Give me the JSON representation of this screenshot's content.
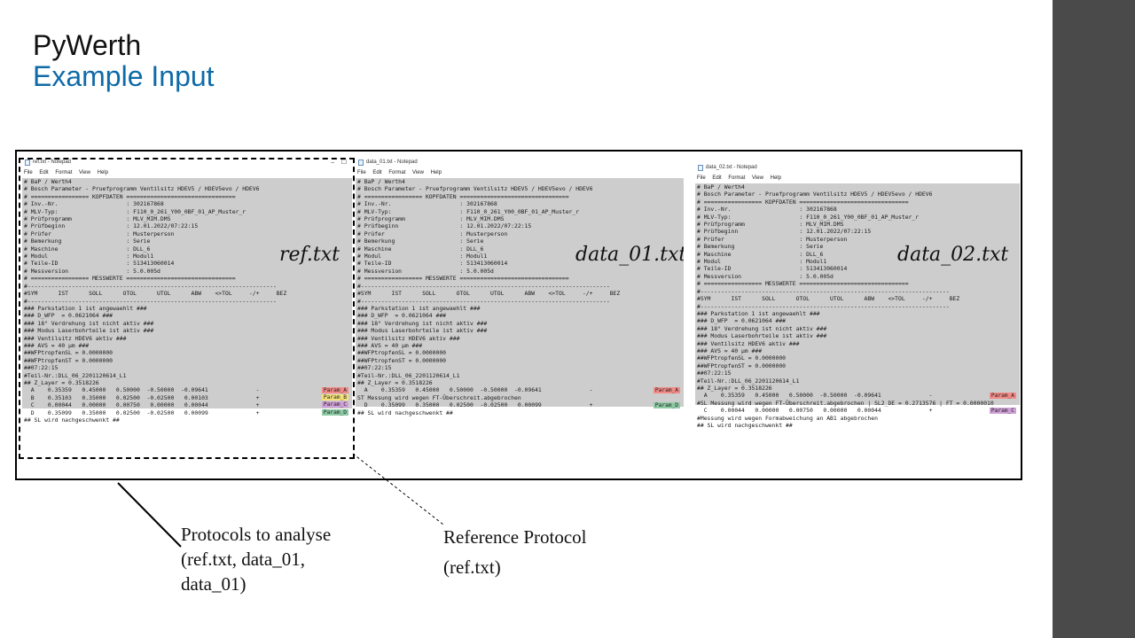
{
  "slide": {
    "title": "PyWerth",
    "subtitle": "Example Input",
    "accent_color": "#0f6aa8"
  },
  "notepad_menu": [
    "File",
    "Edit",
    "Format",
    "View",
    "Help"
  ],
  "windows": [
    {
      "title": "ref.txt - Notepad",
      "label": "ref.txt",
      "lines": [
        "# BaP / Werth4",
        "# Bosch Parameter - Pruefprogramm Ventilsitz HDEV5 / HDEV5evo / HDEV6",
        "# ================= KOPFDATEN ================================",
        "# Inv.-Nr.                    : 302167868",
        "# MLV-Typ:                    : F110_0_261_Y00_0BF_01_AP_Muster_r",
        "# Prüfprogramm                : MLV_MIM.DMS",
        "# Prüfbeginn                  : 12.01.2022/07:22:15",
        "# Prüfer                      : Musterperson",
        "# Bemerkung                   : Serie",
        "# Maschine                    : DLL_6",
        "# Modul                       : Modul1",
        "# Teile-ID                    : 513413060014",
        "# Messversion                 : 5.0.005d",
        "# ================= MESSWERTE ================================",
        "#-------------------------------------------------------------------------",
        "#SYM      IST      SOLL      OTOL      UTOL      ABW    <>TOL     -/+     BEZ",
        "#-------------------------------------------------------------------------",
        "### Parkstation 1 ist angewaehlt ###",
        "### D_WFP  = 0.0621064 ###",
        "### 18° Verdrehung ist nicht aktiv ###",
        "### Modus Laserbohrteile ist aktiv ###",
        "### Ventilsitz HDEV6 aktiv ###",
        "### AVS = 40 µm ###",
        "##WFPtropfenSL = 0.0000000",
        "##WFPtropfenST = 0.0000000",
        "##07:22:15",
        "#Teil-Nr.:DLL_06_2201120614_L1",
        "## Z_Layer = 0.3518226",
        "  A    0.35359   0.45000   0.50000  -0.50000  -0.09641              -",
        "  B    0.35103   0.35000   0.02500  -0.02500   0.00103              +",
        "  C    0.00044   0.00000   0.00750   0.00000   0.00044              +",
        "  D    0.35099   0.35000   0.02500  -0.02500   0.00099              +",
        "## SL wird nachgeschwenkt ##"
      ],
      "tags": [
        {
          "text": "Param_A",
          "color": "red"
        },
        {
          "text": "Param_B",
          "color": "yellow"
        },
        {
          "text": "Param_C",
          "color": "purple"
        },
        {
          "text": "Param_D",
          "color": "green"
        }
      ]
    },
    {
      "title": "data_01.txt - Notepad",
      "label": "data_01.txt",
      "lines": [
        "# BaP / Werth4",
        "# Bosch Parameter - Pruefprogramm Ventilsitz HDEV5 / HDEV5evo / HDEV6",
        "# ================= KOPFDATEN ================================",
        "# Inv.-Nr.                    : 302167868",
        "# MLV-Typ:                    : F110_0_261_Y00_0BF_01_AP_Muster_r",
        "# Prüfprogramm                : MLV_MIM.DMS",
        "# Prüfbeginn                  : 12.01.2022/07:22:15",
        "# Prüfer                      : Musterperson",
        "# Bemerkung                   : Serie",
        "# Maschine                    : DLL_6",
        "# Modul                       : Modul1",
        "# Teile-ID                    : 513413060014",
        "# Messversion                 : 5.0.005d",
        "# ================= MESSWERTE ================================",
        "#-------------------------------------------------------------------------",
        "#SYM      IST      SOLL      OTOL      UTOL      ABW    <>TOL     -/+     BEZ",
        "#-------------------------------------------------------------------------",
        "### Parkstation 1 ist angewaehlt ###",
        "### D_WFP  = 0.0621064 ###",
        "### 18° Verdrehung ist nicht aktiv ###",
        "### Modus Laserbohrteile ist aktiv ###",
        "### Ventilsitz HDEV6 aktiv ###",
        "### AVS = 40 µm ###",
        "##WFPtropfenSL = 0.0000000",
        "##WFPtropfenST = 0.0000000",
        "##07:22:15",
        "#Teil-Nr.:DLL_06_2201120614_L1",
        "## Z_Layer = 0.3518226",
        "  A    0.35359   0.45000   0.50000  -0.50000  -0.09641              -",
        "ST Messung wird wegen FT-Überschreit.abgebrochen",
        "  D    0.35099   0.35000   0.02500  -0.02500   0.00099              +",
        "## SL wird nachgeschwenkt ##"
      ],
      "tags": [
        {
          "text": "Param_A",
          "color": "red"
        },
        {
          "text": "Param_D",
          "color": "green"
        }
      ]
    },
    {
      "title": "data_02.txt - Notepad",
      "label": "data_02.txt",
      "lines": [
        "# BaP / Werth4",
        "# Bosch Parameter - Pruefprogramm Ventilsitz HDEV5 / HDEV5evo / HDEV6",
        "# ================= KOPFDATEN ================================",
        "# Inv.-Nr.                    : 302167868",
        "# MLV-Typ:                    : F110_0_261_Y00_0BF_01_AP_Muster_r",
        "# Prüfprogramm                : MLV_MIM.DMS",
        "# Prüfbeginn                  : 12.01.2022/07:22:15",
        "# Prüfer                      : Musterperson",
        "# Bemerkung                   : Serie",
        "# Maschine                    : DLL_6",
        "# Modul                       : Modul1",
        "# Teile-ID                    : 513413060014",
        "# Messversion                 : 5.0.005d",
        "# ================= MESSWERTE ================================",
        "#-------------------------------------------------------------------------",
        "#SYM      IST      SOLL      OTOL      UTOL      ABW    <>TOL     -/+     BEZ",
        "#-------------------------------------------------------------------------",
        "### Parkstation 1 ist angewaehlt ###",
        "### D_WFP  = 0.0621064 ###",
        "### 18° Verdrehung ist nicht aktiv ###",
        "### Modus Laserbohrteile ist aktiv ###",
        "### Ventilsitz HDEV6 aktiv ###",
        "### AVS = 40 µm ###",
        "##WFPtropfenSL = 0.0000000",
        "##WFPtropfenST = 0.0000000",
        "##07:22:15",
        "#Teil-Nr.:DLL_06_2201120614_L1",
        "## Z_Layer = 0.3518226",
        "  A    0.35359   0.45000   0.50000  -0.50000  -0.09641              -",
        "#SL Messung wird wegen FT-Überschreit.abgebrochen | SL2_DE = 0.2713576 | FT = 0.0000010",
        "  C    0.00044   0.00000   0.00750   0.00000   0.00044              +",
        "#Messung wird wegen Formabweichung an AB1 abgebrochen",
        "## SL wird nachgeschwenkt ##"
      ],
      "tags": [
        {
          "text": "Param_A",
          "color": "red"
        },
        {
          "text": "Param_C",
          "color": "purple"
        }
      ]
    }
  ],
  "notes": {
    "protocols_line1": "Protocols to analyse",
    "protocols_line2": "(ref.txt, data_01,",
    "protocols_line3": "data_01)",
    "reference_line1": "Reference Protocol",
    "reference_line2": "(ref.txt)"
  }
}
